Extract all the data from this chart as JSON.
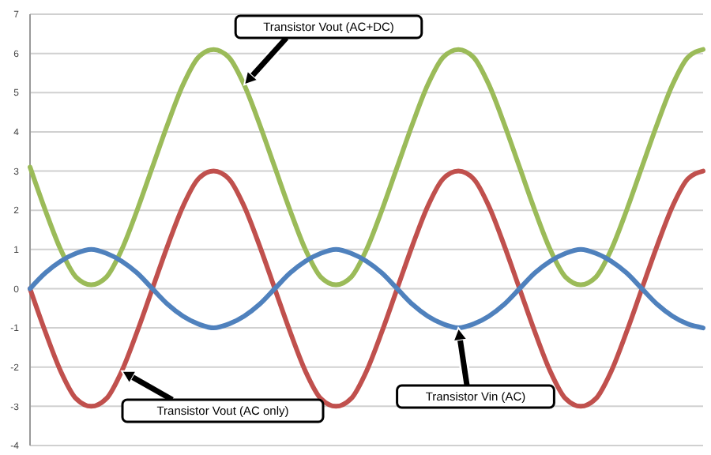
{
  "chart_data": {
    "type": "line",
    "categories": [
      null,
      null,
      null,
      null,
      null,
      null,
      null,
      null,
      null,
      null,
      null,
      null,
      null,
      null,
      null,
      null,
      null,
      null,
      null,
      null,
      null,
      null,
      null,
      null,
      null,
      null,
      null,
      null,
      null,
      null,
      null,
      null,
      null,
      null,
      null,
      null,
      null,
      null,
      null,
      null,
      null,
      null,
      null,
      null,
      null
    ],
    "series": [
      {
        "name": "Transistor Vout (AC+DC)",
        "color": "#9bbb59",
        "values": [
          3.1,
          2,
          1,
          0.3,
          0.1,
          0.3,
          1,
          2,
          3.1,
          4.2,
          5.2,
          5.9,
          6.1,
          5.9,
          5.2,
          4.2,
          3.1,
          2,
          1,
          0.3,
          0.1,
          0.3,
          1,
          2,
          3.1,
          4.2,
          5.2,
          5.9,
          6.1,
          5.9,
          5.2,
          4.2,
          3.1,
          2,
          1,
          0.3,
          0.1,
          0.3,
          1,
          2,
          3.1,
          4.2,
          5.2,
          5.9,
          6.1
        ]
      },
      {
        "name": "Transistor Vout (AC only)",
        "color": "#c0504d",
        "values": [
          0,
          -1.1,
          -2.1,
          -2.8,
          -3,
          -2.8,
          -2.1,
          -1.1,
          0,
          1.1,
          2.1,
          2.8,
          3,
          2.8,
          2.1,
          1.1,
          0,
          -1.1,
          -2.1,
          -2.8,
          -3,
          -2.8,
          -2.1,
          -1.1,
          0,
          1.1,
          2.1,
          2.8,
          3,
          2.8,
          2.1,
          1.1,
          0,
          -1.1,
          -2.1,
          -2.8,
          -3,
          -2.8,
          -2.1,
          -1.1,
          0,
          1.1,
          2.1,
          2.8,
          3
        ]
      },
      {
        "name": "Transistor Vin (AC)",
        "color": "#4f81bd",
        "values": [
          0,
          0.4,
          0.7,
          0.9,
          1,
          0.9,
          0.7,
          0.4,
          0,
          -0.4,
          -0.7,
          -0.9,
          -1,
          -0.9,
          -0.7,
          -0.4,
          0,
          0.4,
          0.7,
          0.9,
          1,
          0.9,
          0.7,
          0.4,
          0,
          -0.4,
          -0.7,
          -0.9,
          -1,
          -0.9,
          -0.7,
          -0.4,
          0,
          0.4,
          0.7,
          0.9,
          1,
          0.9,
          0.7,
          0.4,
          0,
          -0.4,
          -0.7,
          -0.9,
          -1
        ]
      }
    ],
    "ylim": [
      -4,
      7
    ],
    "yticks": [
      -4,
      -3,
      -2,
      -1,
      0,
      1,
      2,
      3,
      4,
      5,
      6,
      7
    ],
    "grid": "y",
    "marker": "none",
    "line_style": "solid",
    "tick_labels": "y"
  }
}
